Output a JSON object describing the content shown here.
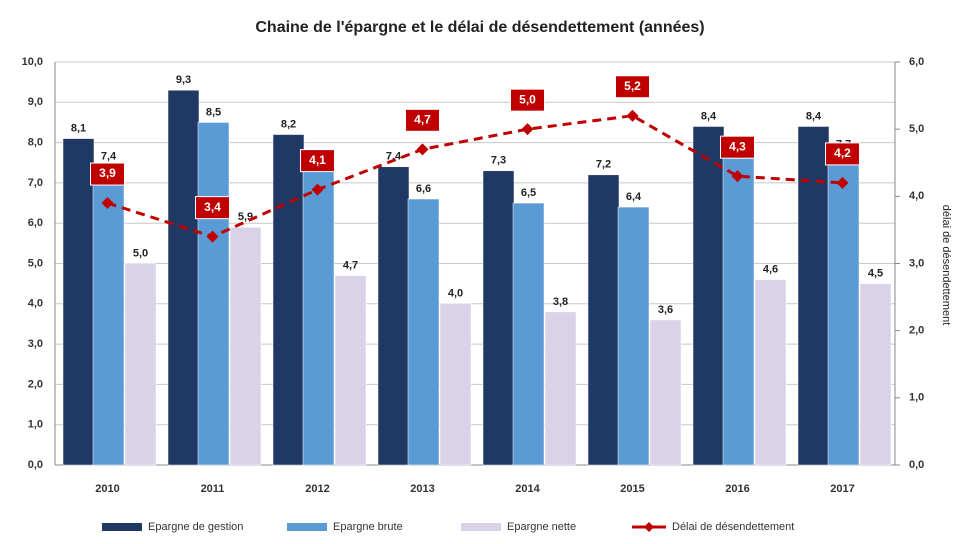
{
  "chart_data": {
    "type": "bar",
    "title": "Chaine de l'épargne et le délai de désendettement (années)",
    "categories": [
      "2010",
      "2011",
      "2012",
      "2013",
      "2014",
      "2015",
      "2016",
      "2017"
    ],
    "series": [
      {
        "name": "Epargne de gestion",
        "color": "#1f3864",
        "values": [
          8.1,
          9.3,
          8.2,
          7.4,
          7.3,
          7.2,
          8.4,
          8.4
        ],
        "value_labels": [
          "8,1",
          "9,3",
          "8,2",
          "7,4",
          "7,3",
          "7,2",
          "8,4",
          "8,4"
        ]
      },
      {
        "name": "Epargne brute",
        "color": "#5b9bd5",
        "values": [
          7.4,
          8.5,
          7.4,
          6.6,
          6.5,
          6.4,
          7.7,
          7.7
        ],
        "value_labels": [
          "7,4",
          "8,5",
          "7,4",
          "6,6",
          "6,5",
          "6,4",
          "7,7",
          "7,7"
        ]
      },
      {
        "name": "Epargne nette",
        "color": "#d9d2e9",
        "values": [
          5.0,
          5.9,
          4.7,
          4.0,
          3.8,
          3.6,
          4.6,
          4.5
        ],
        "value_labels": [
          "5,0",
          "5,9",
          "4,7",
          "4,0",
          "3,8",
          "3,6",
          "4,6",
          "4,5"
        ]
      },
      {
        "name": "Délai de désendettement",
        "color": "#c00000",
        "type": "line",
        "axis": "y2",
        "values": [
          3.9,
          3.4,
          4.1,
          4.7,
          5.0,
          5.2,
          4.3,
          4.2
        ],
        "value_labels": [
          "3,9",
          "3,4",
          "4,1",
          "4,7",
          "5,0",
          "5,2",
          "4,3",
          "4,2"
        ]
      }
    ],
    "ylim": [
      0,
      10
    ],
    "yticks": [
      {
        "value": 0,
        "label": "0,0"
      },
      {
        "value": 1,
        "label": "1,0"
      },
      {
        "value": 2,
        "label": "2,0"
      },
      {
        "value": 3,
        "label": "3,0"
      },
      {
        "value": 4,
        "label": "4,0"
      },
      {
        "value": 5,
        "label": "5,0"
      },
      {
        "value": 6,
        "label": "6,0"
      },
      {
        "value": 7,
        "label": "7,0"
      },
      {
        "value": 8,
        "label": "8,0"
      },
      {
        "value": 9,
        "label": "9,0"
      },
      {
        "value": 10,
        "label": "10,0"
      }
    ],
    "y2label": "délai de désendettement",
    "y2lim": [
      0,
      6
    ],
    "y2ticks": [
      {
        "value": 0,
        "label": "0,0"
      },
      {
        "value": 1,
        "label": "1,0"
      },
      {
        "value": 2,
        "label": "2,0"
      },
      {
        "value": 3,
        "label": "3,0"
      },
      {
        "value": 4,
        "label": "4,0"
      },
      {
        "value": 5,
        "label": "5,0"
      },
      {
        "value": 6,
        "label": "6,0"
      }
    ],
    "grid": true,
    "legend": "bottom"
  }
}
